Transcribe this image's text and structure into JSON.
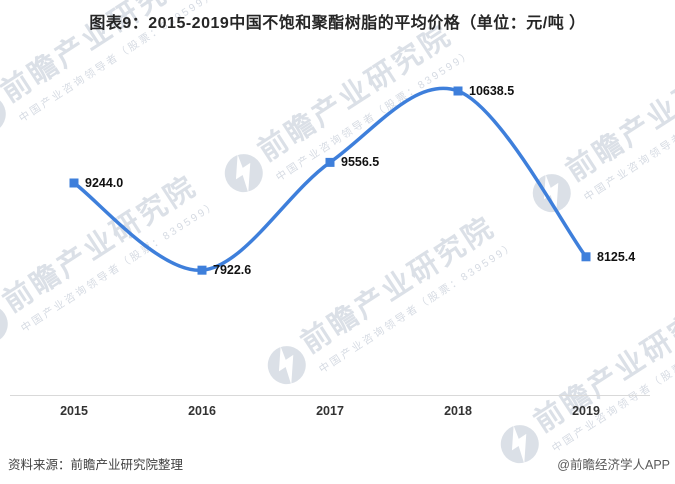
{
  "title": "图表9：2015-2019中国不饱和聚酯树脂的平均价格（单位：元/吨 ）",
  "chart_data": {
    "type": "line",
    "title": "图表9：2015-2019中国不饱和聚酯树脂的平均价格（单位：元/吨 ）",
    "unit": "元/吨",
    "categories": [
      "2015",
      "2016",
      "2017",
      "2018",
      "2019"
    ],
    "values": [
      9244.0,
      7922.6,
      9556.5,
      10638.5,
      8125.4
    ],
    "point_labels": [
      "9244.0",
      "7922.6",
      "9556.5",
      "10638.5",
      "8125.4"
    ],
    "line_color": "#3E7FDB",
    "marker_color": "#3E7FDB",
    "marker_shape": "square",
    "smooth": true,
    "grid": false,
    "legend": "none",
    "yaxis_visible": false,
    "axis_line_color": "#d9d9d9"
  },
  "footer": {
    "source": "资料来源：前瞻产业研究院整理",
    "credit": "@前瞻经济学人APP"
  },
  "watermark": {
    "brand": "前瞻产业研究院",
    "tagline": "中国产业咨询领导者（股票：839599）",
    "big_color": "#dbe0e7",
    "small_color": "#d6dbe3"
  }
}
